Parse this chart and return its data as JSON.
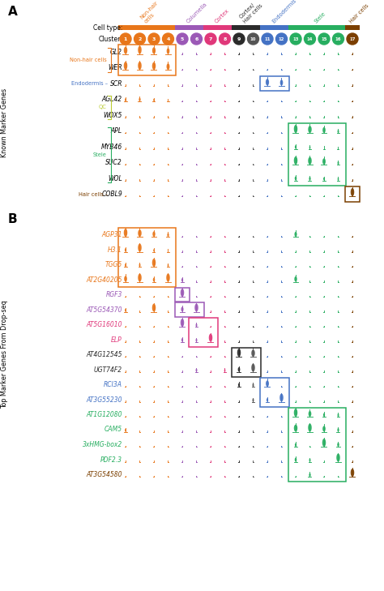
{
  "cell_types": [
    "Non-hair\ncells",
    "Columella",
    "Cortex",
    "Cortex/\nHair cells",
    "Endodermis",
    "Stele",
    "Hair cells"
  ],
  "cell_type_colors": [
    "#E8761A",
    "#9B59B6",
    "#E0387A",
    "#2B2B2B",
    "#4472C4",
    "#27AE60",
    "#7B3F00"
  ],
  "cell_type_ranges": [
    [
      0,
      3
    ],
    [
      4,
      5
    ],
    [
      6,
      7
    ],
    [
      8,
      9
    ],
    [
      10,
      11
    ],
    [
      12,
      15
    ],
    [
      16,
      16
    ]
  ],
  "cluster_nums": [
    1,
    2,
    3,
    4,
    5,
    6,
    7,
    8,
    9,
    10,
    11,
    12,
    13,
    14,
    15,
    16,
    17
  ],
  "cluster_colors": [
    "#E8761A",
    "#E8761A",
    "#E8761A",
    "#E8761A",
    "#9B59B6",
    "#9B59B6",
    "#E0387A",
    "#E0387A",
    "#2B2B2B",
    "#555555",
    "#4472C4",
    "#4472C4",
    "#27AE60",
    "#27AE60",
    "#27AE60",
    "#27AE60",
    "#7B3F00"
  ],
  "known_genes": [
    "GL2",
    "WER",
    "SCR",
    "AGL42",
    "WOX5",
    "APL",
    "MYB46",
    "SUC2",
    "WOL",
    "COBL9"
  ],
  "top_genes": [
    "AGP31",
    "H3.1",
    "TGG5",
    "AT2G40205",
    "RGF3",
    "AT5G54370",
    "AT5G16010",
    "ELP",
    "AT4G12545",
    "UGT74F2",
    "RCI3A",
    "AT3G55230",
    "AT1G12080",
    "CAM5",
    "3xHMG-box2",
    "PDF2.3",
    "AT3G54580"
  ],
  "top_gene_colors": [
    "#E8761A",
    "#E8761A",
    "#E8761A",
    "#E8761A",
    "#9B59B6",
    "#9B59B6",
    "#E0387A",
    "#E0387A",
    "#2B2B2B",
    "#2B2B2B",
    "#4472C4",
    "#4472C4",
    "#27AE60",
    "#27AE60",
    "#27AE60",
    "#27AE60",
    "#7B3F00"
  ],
  "violin_scales_A": {
    "GL2": [
      1.6,
      2.0,
      1.5,
      1.3,
      0.2,
      0.2,
      0.2,
      0.2,
      0.2,
      0.2,
      0.2,
      0.2,
      0.2,
      0.2,
      0.2,
      0.2,
      0.2
    ],
    "WER": [
      1.8,
      2.4,
      1.7,
      1.4,
      0.2,
      0.2,
      0.2,
      0.2,
      0.2,
      0.2,
      0.2,
      0.2,
      0.2,
      0.2,
      0.2,
      0.2,
      0.2
    ],
    "SCR": [
      0.2,
      0.2,
      0.2,
      0.2,
      0.2,
      0.2,
      0.2,
      0.2,
      0.2,
      0.2,
      1.5,
      1.3,
      0.2,
      0.2,
      0.2,
      0.2,
      0.2
    ],
    "AGL42": [
      0.7,
      0.8,
      0.6,
      0.5,
      0.2,
      0.2,
      0.2,
      0.2,
      0.2,
      0.2,
      0.2,
      0.2,
      0.2,
      0.2,
      0.2,
      0.2,
      0.2
    ],
    "WOX5": [
      0.2,
      0.2,
      0.2,
      0.2,
      0.2,
      0.2,
      0.2,
      0.2,
      0.2,
      0.2,
      0.2,
      0.2,
      0.2,
      0.2,
      0.2,
      0.2,
      0.2
    ],
    "APL": [
      0.2,
      0.2,
      0.2,
      0.2,
      0.2,
      0.2,
      0.2,
      0.2,
      0.2,
      0.2,
      0.2,
      0.2,
      2.2,
      1.6,
      1.3,
      0.7,
      0.2
    ],
    "MYB46": [
      0.2,
      0.2,
      0.2,
      0.2,
      0.2,
      0.2,
      0.2,
      0.2,
      0.2,
      0.2,
      0.2,
      0.2,
      0.8,
      0.6,
      0.5,
      0.4,
      0.2
    ],
    "SUC2": [
      0.2,
      0.2,
      0.2,
      0.2,
      0.2,
      0.2,
      0.2,
      0.2,
      0.2,
      0.2,
      0.2,
      0.2,
      2.0,
      1.7,
      1.4,
      0.7,
      0.2
    ],
    "WOL": [
      0.2,
      0.2,
      0.2,
      0.2,
      0.2,
      0.2,
      0.2,
      0.2,
      0.2,
      0.2,
      0.2,
      0.2,
      0.9,
      0.8,
      0.7,
      0.6,
      0.2
    ],
    "COBL9": [
      0.2,
      0.2,
      0.2,
      0.2,
      0.2,
      0.2,
      0.2,
      0.2,
      0.2,
      0.2,
      0.2,
      0.2,
      0.2,
      0.2,
      0.2,
      0.2,
      2.0
    ]
  },
  "violin_scales_B": {
    "AGP31": [
      2.2,
      1.6,
      1.2,
      0.8,
      0.2,
      0.2,
      0.2,
      0.2,
      0.2,
      0.2,
      0.2,
      0.2,
      1.1,
      0.2,
      0.2,
      0.2,
      0.2
    ],
    "H3.1": [
      0.8,
      2.0,
      0.6,
      0.5,
      0.2,
      0.2,
      0.2,
      0.2,
      0.2,
      0.2,
      0.2,
      0.2,
      0.2,
      0.2,
      0.2,
      0.2,
      0.2
    ],
    "TGG5": [
      0.7,
      0.7,
      2.2,
      0.6,
      0.2,
      0.2,
      0.2,
      0.2,
      0.2,
      0.2,
      0.2,
      0.2,
      0.2,
      0.2,
      0.2,
      0.2,
      0.2
    ],
    "AT2G40205": [
      1.3,
      2.5,
      0.9,
      2.0,
      0.8,
      0.2,
      0.2,
      0.2,
      0.2,
      0.2,
      0.2,
      0.2,
      1.2,
      0.2,
      0.2,
      0.2,
      0.2
    ],
    "RGF3": [
      0.2,
      0.2,
      0.2,
      0.2,
      2.5,
      0.2,
      0.2,
      0.2,
      0.2,
      0.2,
      0.2,
      0.2,
      0.2,
      0.2,
      0.2,
      0.2,
      0.2
    ],
    "AT5G54370": [
      0.7,
      0.2,
      1.8,
      0.2,
      1.1,
      2.2,
      0.2,
      0.2,
      0.2,
      0.2,
      0.2,
      0.2,
      0.2,
      0.2,
      0.2,
      0.2,
      0.2
    ],
    "AT5G16010": [
      0.2,
      0.2,
      0.2,
      0.2,
      2.0,
      0.7,
      0.2,
      0.2,
      0.2,
      0.2,
      0.2,
      0.2,
      0.2,
      0.2,
      0.2,
      0.2,
      0.2
    ],
    "ELP": [
      0.2,
      0.2,
      0.2,
      0.2,
      0.8,
      0.7,
      1.8,
      0.2,
      0.2,
      0.2,
      0.2,
      0.2,
      0.2,
      0.2,
      0.2,
      0.2,
      0.2
    ],
    "AT4G12545": [
      0.2,
      0.2,
      0.2,
      0.2,
      0.2,
      0.2,
      0.2,
      0.2,
      2.0,
      1.6,
      0.2,
      0.2,
      0.2,
      0.2,
      0.2,
      0.2,
      0.2
    ],
    "UGT74F2": [
      0.2,
      0.2,
      0.2,
      0.2,
      0.2,
      0.7,
      0.2,
      0.6,
      1.0,
      1.8,
      0.2,
      0.2,
      0.2,
      0.2,
      0.2,
      0.2,
      0.2
    ],
    "RCI3A": [
      0.2,
      0.2,
      0.2,
      0.2,
      0.2,
      0.2,
      0.2,
      0.2,
      0.8,
      0.7,
      1.4,
      0.2,
      0.2,
      0.2,
      0.2,
      0.2,
      0.2
    ],
    "AT3G55230": [
      0.2,
      0.2,
      0.2,
      0.2,
      0.2,
      0.2,
      0.2,
      0.2,
      0.2,
      0.7,
      0.8,
      2.0,
      0.2,
      0.2,
      0.2,
      0.2,
      0.2
    ],
    "AT1G12080": [
      0.2,
      0.2,
      0.2,
      0.2,
      0.2,
      0.2,
      0.2,
      0.2,
      0.2,
      0.2,
      0.2,
      0.2,
      2.2,
      1.3,
      0.8,
      0.7,
      0.2
    ],
    "CAM5": [
      0.7,
      0.2,
      0.2,
      0.2,
      0.2,
      0.2,
      0.2,
      0.2,
      0.2,
      0.2,
      0.2,
      0.2,
      1.6,
      2.0,
      1.3,
      0.8,
      0.2
    ],
    "3xHMG-box2": [
      0.2,
      0.2,
      0.2,
      0.2,
      0.2,
      0.2,
      0.2,
      0.2,
      0.2,
      0.2,
      0.2,
      0.2,
      0.8,
      0.2,
      2.2,
      0.9,
      0.2
    ],
    "PDF2.3": [
      0.2,
      0.2,
      0.2,
      0.2,
      0.2,
      0.2,
      0.2,
      0.2,
      0.2,
      0.2,
      0.2,
      0.2,
      0.9,
      0.7,
      0.2,
      2.0,
      0.2
    ],
    "AT3G54580": [
      0.2,
      0.2,
      0.2,
      0.2,
      0.2,
      0.2,
      0.2,
      0.2,
      0.2,
      0.2,
      0.2,
      0.2,
      0.2,
      0.8,
      0.2,
      0.2,
      1.9
    ]
  },
  "boxes_A": [
    [
      0,
      1,
      0,
      3,
      "#E8761A"
    ],
    [
      2,
      2,
      10,
      11,
      "#4472C4"
    ],
    [
      5,
      8,
      12,
      15,
      "#27AE60"
    ],
    [
      9,
      9,
      16,
      16,
      "#7B3F00"
    ]
  ],
  "boxes_B": [
    [
      0,
      3,
      0,
      3,
      "#E8761A"
    ],
    [
      4,
      4,
      4,
      4,
      "#9B59B6"
    ],
    [
      5,
      5,
      4,
      5,
      "#9B59B6"
    ],
    [
      6,
      7,
      5,
      6,
      "#E0387A"
    ],
    [
      8,
      9,
      8,
      9,
      "#2B2B2B"
    ],
    [
      10,
      11,
      10,
      11,
      "#4472C4"
    ],
    [
      12,
      16,
      12,
      15,
      "#27AE60"
    ]
  ]
}
